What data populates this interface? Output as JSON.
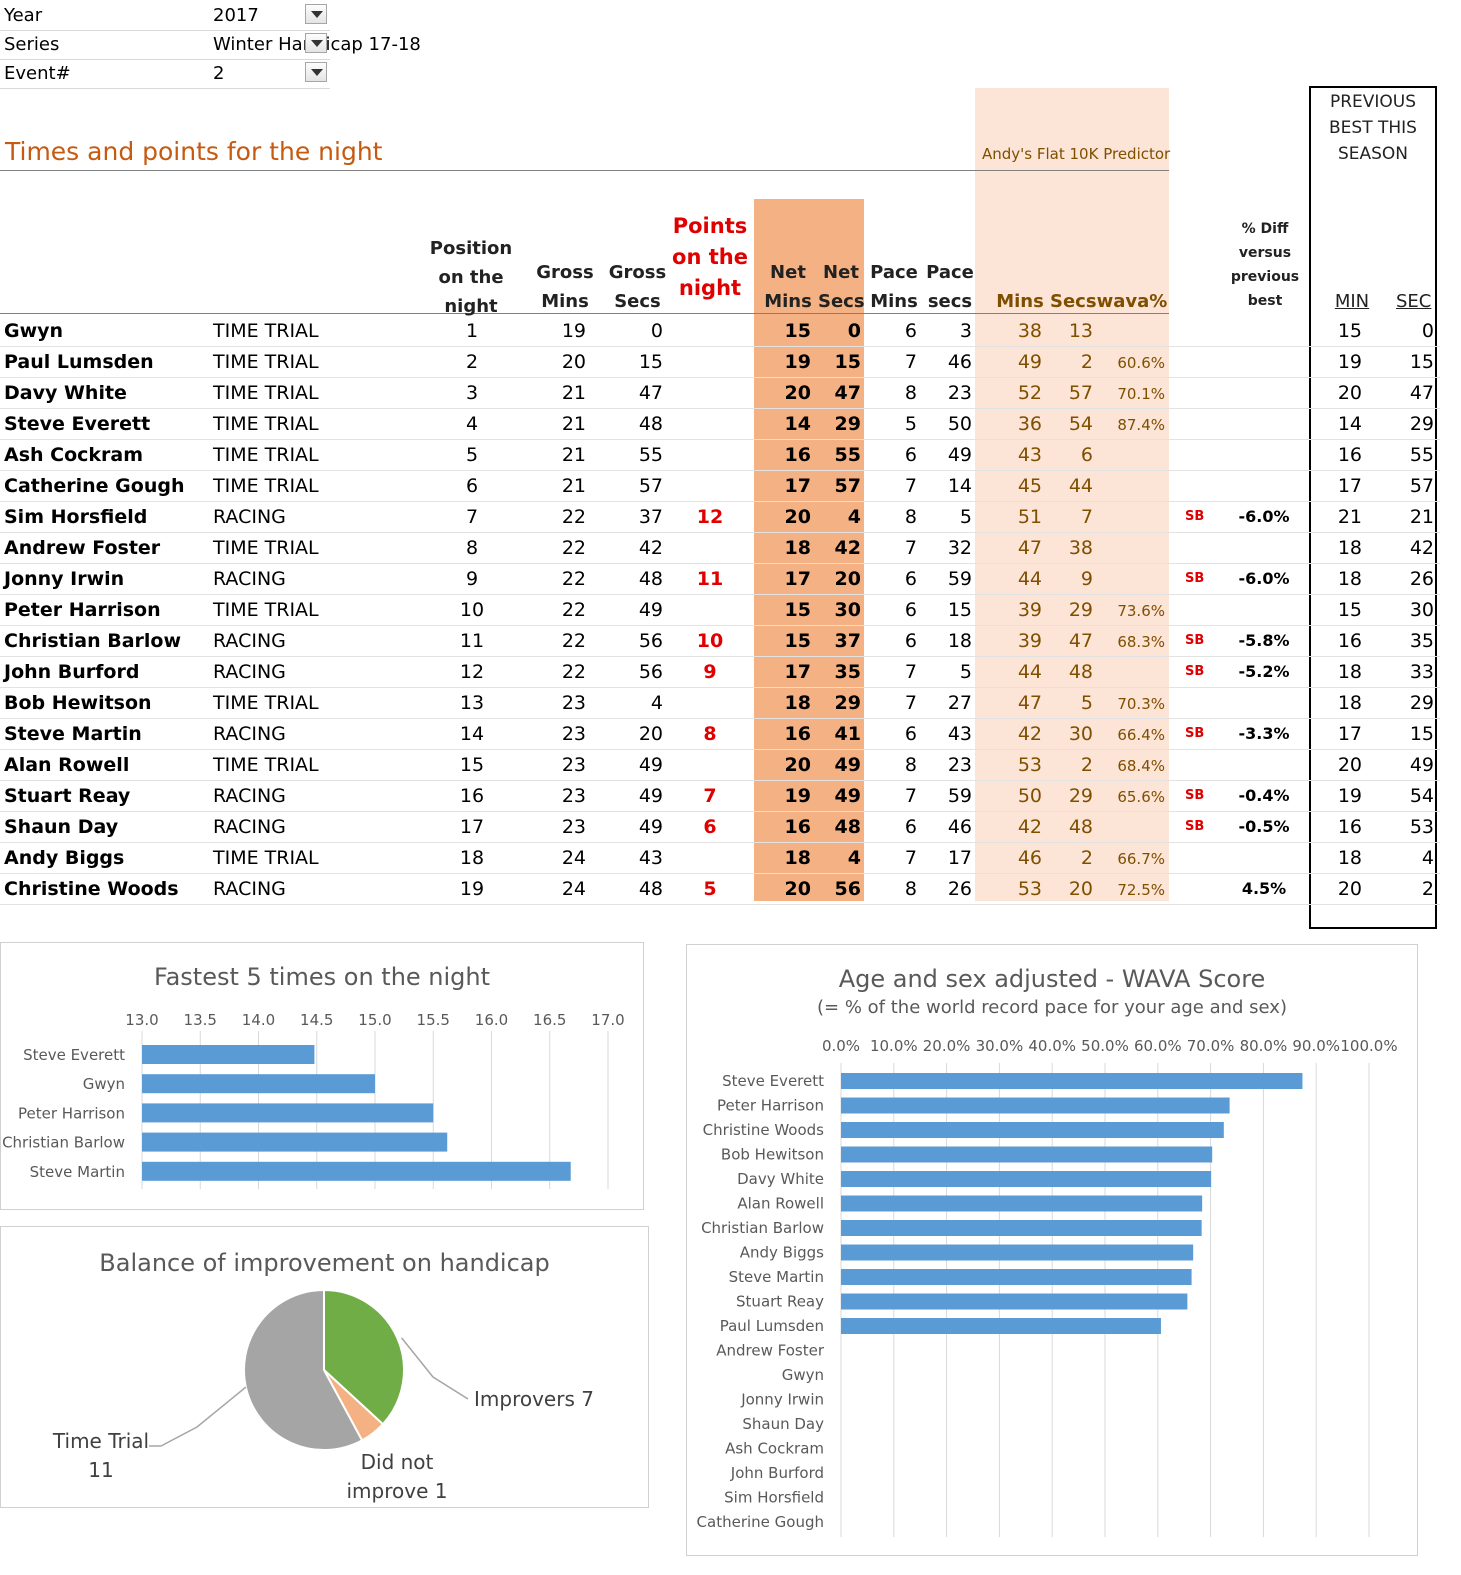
{
  "filters": [
    {
      "label": "Year",
      "value": "2017"
    },
    {
      "label": "Series",
      "value": "Winter Handicap 17-18"
    },
    {
      "label": "Event#",
      "value": "2"
    }
  ],
  "section_title": "Times and points for the night",
  "predictor_label": "Andy's Flat 10K Predictor",
  "prev_best_label": [
    "PREVIOUS",
    "BEST THIS",
    "SEASON"
  ],
  "headers": {
    "position": [
      "Position",
      "on the",
      "night"
    ],
    "gross_mins": [
      "Gross",
      "Mins"
    ],
    "gross_secs": [
      "Gross",
      "Secs"
    ],
    "points": [
      "Points",
      "on the",
      "night"
    ],
    "net_mins": [
      "Net",
      "Mins"
    ],
    "net_secs": [
      "Net",
      "Secs"
    ],
    "pace_mins": [
      "Pace",
      "Mins"
    ],
    "pace_secs": [
      "Pace",
      "secs"
    ],
    "pred_mins": "Mins",
    "pred_secs": "Secs",
    "wava": "wava%",
    "pct_diff": [
      "% Diff",
      "versus",
      "previous",
      "best"
    ],
    "prev_min": "MIN",
    "prev_sec": "SEC"
  },
  "rows": [
    {
      "name": "Gwyn",
      "type": "TIME TRIAL",
      "pos": "1",
      "gm": "19",
      "gs": "0",
      "pts": "",
      "nm": "15",
      "ns": "0",
      "pm": "6",
      "ps": "3",
      "prm": "38",
      "prs": "13",
      "wava": "",
      "sb": "",
      "diff": "",
      "bm": "15",
      "bs": "0"
    },
    {
      "name": "Paul Lumsden",
      "type": "TIME TRIAL",
      "pos": "2",
      "gm": "20",
      "gs": "15",
      "pts": "",
      "nm": "19",
      "ns": "15",
      "pm": "7",
      "ps": "46",
      "prm": "49",
      "prs": "2",
      "wava": "60.6%",
      "sb": "",
      "diff": "",
      "bm": "19",
      "bs": "15"
    },
    {
      "name": "Davy White",
      "type": "TIME TRIAL",
      "pos": "3",
      "gm": "21",
      "gs": "47",
      "pts": "",
      "nm": "20",
      "ns": "47",
      "pm": "8",
      "ps": "23",
      "prm": "52",
      "prs": "57",
      "wava": "70.1%",
      "sb": "",
      "diff": "",
      "bm": "20",
      "bs": "47"
    },
    {
      "name": "Steve Everett",
      "type": "TIME TRIAL",
      "pos": "4",
      "gm": "21",
      "gs": "48",
      "pts": "",
      "nm": "14",
      "ns": "29",
      "pm": "5",
      "ps": "50",
      "prm": "36",
      "prs": "54",
      "wava": "87.4%",
      "sb": "",
      "diff": "",
      "bm": "14",
      "bs": "29"
    },
    {
      "name": "Ash Cockram",
      "type": "TIME TRIAL",
      "pos": "5",
      "gm": "21",
      "gs": "55",
      "pts": "",
      "nm": "16",
      "ns": "55",
      "pm": "6",
      "ps": "49",
      "prm": "43",
      "prs": "6",
      "wava": "",
      "sb": "",
      "diff": "",
      "bm": "16",
      "bs": "55"
    },
    {
      "name": "Catherine Gough",
      "type": "TIME TRIAL",
      "pos": "6",
      "gm": "21",
      "gs": "57",
      "pts": "",
      "nm": "17",
      "ns": "57",
      "pm": "7",
      "ps": "14",
      "prm": "45",
      "prs": "44",
      "wava": "",
      "sb": "",
      "diff": "",
      "bm": "17",
      "bs": "57"
    },
    {
      "name": "Sim Horsfield",
      "type": "RACING",
      "pos": "7",
      "gm": "22",
      "gs": "37",
      "pts": "12",
      "nm": "20",
      "ns": "4",
      "pm": "8",
      "ps": "5",
      "prm": "51",
      "prs": "7",
      "wava": "",
      "sb": "SB",
      "diff": "-6.0%",
      "bm": "21",
      "bs": "21"
    },
    {
      "name": "Andrew Foster",
      "type": "TIME TRIAL",
      "pos": "8",
      "gm": "22",
      "gs": "42",
      "pts": "",
      "nm": "18",
      "ns": "42",
      "pm": "7",
      "ps": "32",
      "prm": "47",
      "prs": "38",
      "wava": "",
      "sb": "",
      "diff": "",
      "bm": "18",
      "bs": "42"
    },
    {
      "name": "Jonny Irwin",
      "type": "RACING",
      "pos": "9",
      "gm": "22",
      "gs": "48",
      "pts": "11",
      "nm": "17",
      "ns": "20",
      "pm": "6",
      "ps": "59",
      "prm": "44",
      "prs": "9",
      "wava": "",
      "sb": "SB",
      "diff": "-6.0%",
      "bm": "18",
      "bs": "26"
    },
    {
      "name": "Peter Harrison",
      "type": "TIME TRIAL",
      "pos": "10",
      "gm": "22",
      "gs": "49",
      "pts": "",
      "nm": "15",
      "ns": "30",
      "pm": "6",
      "ps": "15",
      "prm": "39",
      "prs": "29",
      "wava": "73.6%",
      "sb": "",
      "diff": "",
      "bm": "15",
      "bs": "30"
    },
    {
      "name": "Christian Barlow",
      "type": "RACING",
      "pos": "11",
      "gm": "22",
      "gs": "56",
      "pts": "10",
      "nm": "15",
      "ns": "37",
      "pm": "6",
      "ps": "18",
      "prm": "39",
      "prs": "47",
      "wava": "68.3%",
      "sb": "SB",
      "diff": "-5.8%",
      "bm": "16",
      "bs": "35"
    },
    {
      "name": "John Burford",
      "type": "RACING",
      "pos": "12",
      "gm": "22",
      "gs": "56",
      "pts": "9",
      "nm": "17",
      "ns": "35",
      "pm": "7",
      "ps": "5",
      "prm": "44",
      "prs": "48",
      "wava": "",
      "sb": "SB",
      "diff": "-5.2%",
      "bm": "18",
      "bs": "33"
    },
    {
      "name": "Bob Hewitson",
      "type": "TIME TRIAL",
      "pos": "13",
      "gm": "23",
      "gs": "4",
      "pts": "",
      "nm": "18",
      "ns": "29",
      "pm": "7",
      "ps": "27",
      "prm": "47",
      "prs": "5",
      "wava": "70.3%",
      "sb": "",
      "diff": "",
      "bm": "18",
      "bs": "29"
    },
    {
      "name": "Steve Martin",
      "type": "RACING",
      "pos": "14",
      "gm": "23",
      "gs": "20",
      "pts": "8",
      "nm": "16",
      "ns": "41",
      "pm": "6",
      "ps": "43",
      "prm": "42",
      "prs": "30",
      "wava": "66.4%",
      "sb": "SB",
      "diff": "-3.3%",
      "bm": "17",
      "bs": "15"
    },
    {
      "name": "Alan Rowell",
      "type": "TIME TRIAL",
      "pos": "15",
      "gm": "23",
      "gs": "49",
      "pts": "",
      "nm": "20",
      "ns": "49",
      "pm": "8",
      "ps": "23",
      "prm": "53",
      "prs": "2",
      "wava": "68.4%",
      "sb": "",
      "diff": "",
      "bm": "20",
      "bs": "49"
    },
    {
      "name": "Stuart Reay",
      "type": "RACING",
      "pos": "16",
      "gm": "23",
      "gs": "49",
      "pts": "7",
      "nm": "19",
      "ns": "49",
      "pm": "7",
      "ps": "59",
      "prm": "50",
      "prs": "29",
      "wava": "65.6%",
      "sb": "SB",
      "diff": "-0.4%",
      "bm": "19",
      "bs": "54"
    },
    {
      "name": "Shaun Day",
      "type": "RACING",
      "pos": "17",
      "gm": "23",
      "gs": "49",
      "pts": "6",
      "nm": "16",
      "ns": "48",
      "pm": "6",
      "ps": "46",
      "prm": "42",
      "prs": "48",
      "wava": "",
      "sb": "SB",
      "diff": "-0.5%",
      "bm": "16",
      "bs": "53"
    },
    {
      "name": "Andy Biggs",
      "type": "TIME TRIAL",
      "pos": "18",
      "gm": "24",
      "gs": "43",
      "pts": "",
      "nm": "18",
      "ns": "4",
      "pm": "7",
      "ps": "17",
      "prm": "46",
      "prs": "2",
      "wava": "66.7%",
      "sb": "",
      "diff": "",
      "bm": "18",
      "bs": "4"
    },
    {
      "name": "Christine Woods",
      "type": "RACING",
      "pos": "19",
      "gm": "24",
      "gs": "48",
      "pts": "5",
      "nm": "20",
      "ns": "56",
      "pm": "8",
      "ps": "26",
      "prm": "53",
      "prs": "20",
      "wava": "72.5%",
      "sb": "",
      "diff": "4.5%",
      "bm": "20",
      "bs": "2"
    }
  ],
  "chart_data": [
    {
      "type": "bar",
      "title": "Fastest 5 times on the night",
      "categories": [
        "Steve Everett",
        "Gwyn",
        "Peter Harrison",
        "Christian Barlow",
        "Steve Martin"
      ],
      "values": [
        14.48,
        15.0,
        15.5,
        15.62,
        16.68
      ],
      "xlim": [
        13.0,
        17.0
      ],
      "ticks": [
        "13.0",
        "13.5",
        "14.0",
        "14.5",
        "15.0",
        "15.5",
        "16.0",
        "16.5",
        "17.0"
      ],
      "bar_color": "#5b9bd5",
      "grid": true
    },
    {
      "type": "pie",
      "title": "Balance of improvement on handicap",
      "slices": [
        {
          "label": "Improvers 7",
          "value": 7,
          "color": "#70ad47"
        },
        {
          "label": "Did not improve 1",
          "value": 1,
          "color": "#f4b183"
        },
        {
          "label": "Time Trial 11",
          "value": 11,
          "color": "#a5a5a5"
        }
      ]
    },
    {
      "type": "bar",
      "title": "Age and sex adjusted - WAVA Score",
      "subtitle": "(= % of the world record pace for your age and sex)",
      "categories": [
        "Steve Everett",
        "Peter Harrison",
        "Christine Woods",
        "Bob Hewitson",
        "Davy White",
        "Alan Rowell",
        "Christian Barlow",
        "Andy Biggs",
        "Steve Martin",
        "Stuart Reay",
        "Paul Lumsden",
        "Andrew Foster",
        "Gwyn",
        "Jonny Irwin",
        "Shaun Day",
        "Ash Cockram",
        "John Burford",
        "Sim Horsfield",
        "Catherine Gough"
      ],
      "values": [
        87.4,
        73.6,
        72.5,
        70.3,
        70.1,
        68.4,
        68.3,
        66.7,
        66.4,
        65.6,
        60.6,
        0,
        0,
        0,
        0,
        0,
        0,
        0,
        0
      ],
      "xlim": [
        0,
        100
      ],
      "ticks": [
        "0.0%",
        "10.0%",
        "20.0%",
        "30.0%",
        "40.0%",
        "50.0%",
        "60.0%",
        "70.0%",
        "80.0%",
        "90.0%",
        "100.0%"
      ],
      "bar_color": "#5b9bd5",
      "grid": true
    }
  ]
}
